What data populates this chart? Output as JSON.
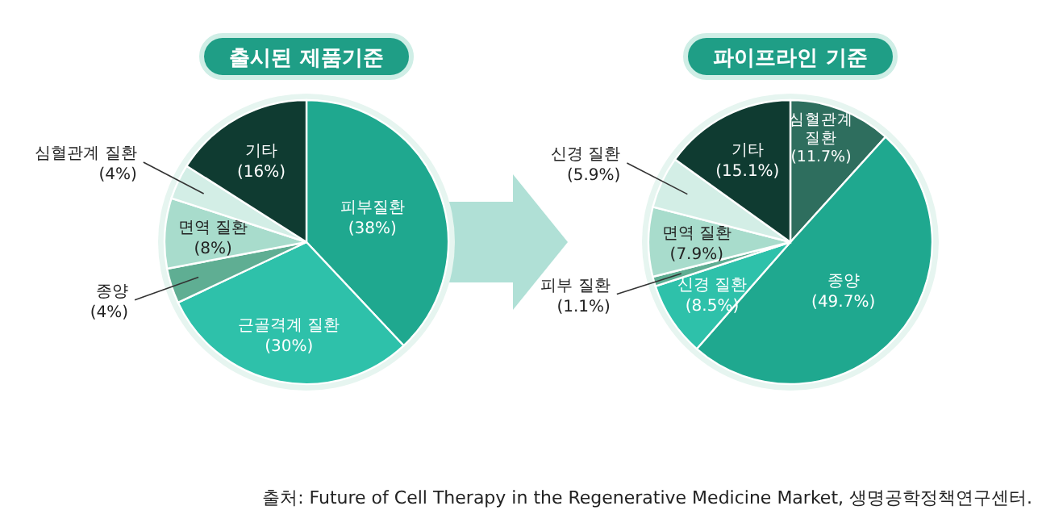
{
  "chart_data": [
    {
      "type": "pie",
      "title": "출시된 제품기준",
      "categories": [
        "피부질환",
        "근골격계 질환",
        "종양",
        "면역 질환",
        "심혈관계 질환",
        "기타"
      ],
      "values": [
        38,
        30,
        4,
        8,
        4,
        16
      ],
      "value_labels": [
        "(38%)",
        "(30%)",
        "(4%)",
        "(8%)",
        "(4%)",
        "(16%)"
      ],
      "colors": [
        "#1fa88f",
        "#2ec1aa",
        "#5fae93",
        "#a8dccc",
        "#d3eee6",
        "#0f3b31"
      ]
    },
    {
      "type": "pie",
      "title": "파이프라인 기준",
      "categories": [
        "심혈관계 질환",
        "종양",
        "신경 질환",
        "피부 질환",
        "면역 질환",
        "신경 질환",
        "기타"
      ],
      "values": [
        11.7,
        49.7,
        8.5,
        1.1,
        7.9,
        5.9,
        15.1
      ],
      "value_labels": [
        "(11.7%)",
        "(49.7%)",
        "(8.5%)",
        "(1.1%)",
        "(7.9%)",
        "(5.9%)",
        "(15.1%)"
      ],
      "colors": [
        "#2e6e5e",
        "#1fa88f",
        "#2ec1aa",
        "#5fae93",
        "#a8dccc",
        "#d3eee6",
        "#0f3b31"
      ],
      "annotations": [
        "출처: Future of Cell Therapy in the Regenerative Medicine Market, 생명공학정책연구센터."
      ]
    }
  ]
}
